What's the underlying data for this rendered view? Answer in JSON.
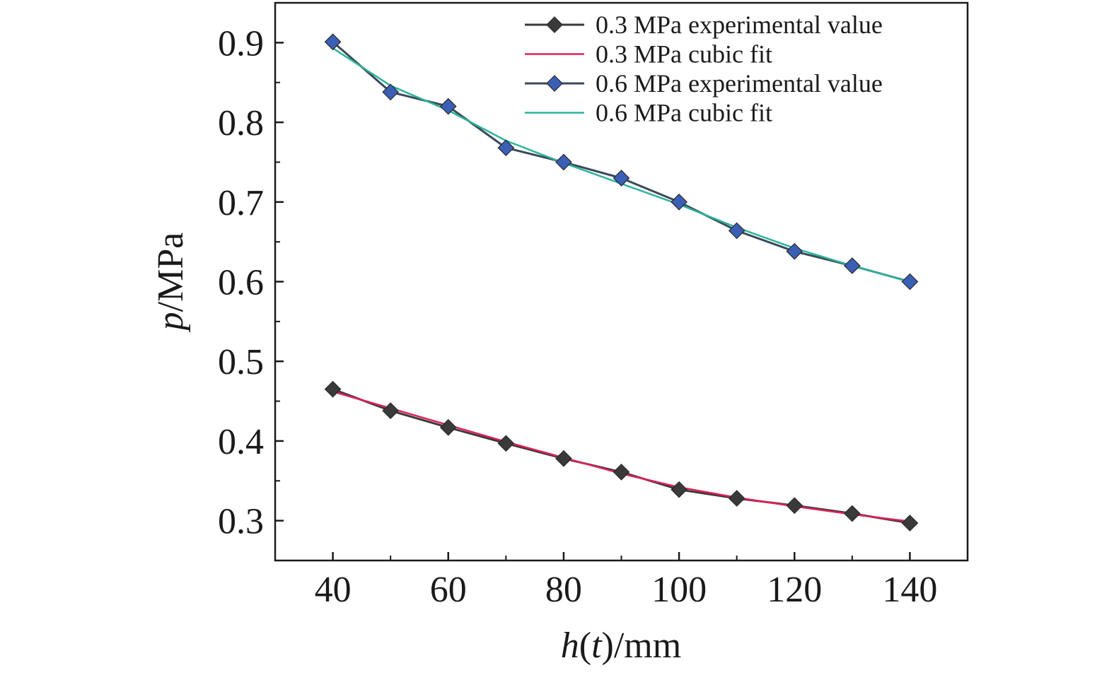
{
  "chart_data": {
    "type": "line",
    "xlabel_italic": "h",
    "xlabel_paren_open": "(",
    "xlabel_var": "t",
    "xlabel_rest": ")/mm",
    "ylabel_italic": "p",
    "ylabel_rest": "/MPa",
    "xlim": [
      30,
      150
    ],
    "ylim": [
      0.25,
      0.95
    ],
    "xticks": [
      "40",
      "60",
      "80",
      "100",
      "120",
      "140"
    ],
    "yticks": [
      "0.3",
      "0.4",
      "0.5",
      "0.6",
      "0.7",
      "0.8",
      "0.9"
    ],
    "x": [
      40,
      50,
      60,
      70,
      80,
      90,
      100,
      110,
      120,
      130,
      140
    ],
    "legend_position": "top-right",
    "series": [
      {
        "name": "0.3 MPa experimental value",
        "kind": "markers-line",
        "color": "#3a3a3a",
        "marker_color": "#3a3a3a",
        "values": [
          0.465,
          0.438,
          0.417,
          0.397,
          0.378,
          0.361,
          0.339,
          0.328,
          0.319,
          0.309,
          0.297
        ]
      },
      {
        "name": "0.3 MPa cubic fit",
        "kind": "line",
        "color": "#e0205a",
        "values": [
          0.462,
          0.441,
          0.42,
          0.399,
          0.379,
          0.359,
          0.342,
          0.329,
          0.318,
          0.308,
          0.299
        ]
      },
      {
        "name": "0.6 MPa experimental value",
        "kind": "markers-line",
        "color": "#3a4a5a",
        "marker_color": "#3a5fb5",
        "values": [
          0.901,
          0.838,
          0.82,
          0.768,
          0.75,
          0.73,
          0.7,
          0.664,
          0.638,
          0.62,
          0.6
        ]
      },
      {
        "name": "0.6 MPa cubic fit",
        "kind": "line",
        "color": "#2db39a",
        "values": [
          0.893,
          0.846,
          0.815,
          0.777,
          0.749,
          0.723,
          0.697,
          0.668,
          0.642,
          0.62,
          0.6
        ]
      }
    ]
  }
}
